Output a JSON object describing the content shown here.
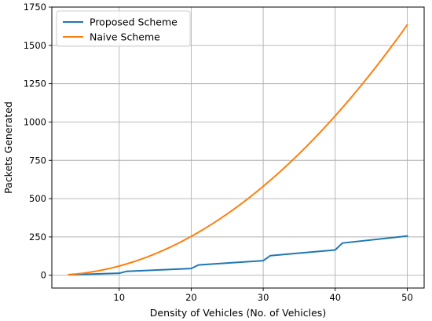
{
  "chart_data": {
    "type": "line",
    "title": "",
    "xlabel": "Density of Vehicles (No. of Vehicles)",
    "ylabel": "Packets Generated",
    "xlim": [
      0.65,
      52.35
    ],
    "ylim": [
      -83.5,
      1750
    ],
    "xticks": [
      10,
      20,
      30,
      40,
      50
    ],
    "yticks": [
      0,
      250,
      500,
      750,
      1000,
      1250,
      1500,
      1750
    ],
    "grid": true,
    "legend_position": "upper-left",
    "series": [
      {
        "name": "Proposed Scheme",
        "color": "#1f77b4",
        "points": [
          [
            3,
            3
          ],
          [
            10,
            13
          ],
          [
            11,
            25
          ],
          [
            20,
            44
          ],
          [
            21,
            67
          ],
          [
            30,
            95
          ],
          [
            31,
            128
          ],
          [
            40,
            165
          ],
          [
            41,
            210
          ],
          [
            50,
            256
          ]
        ]
      },
      {
        "name": "Naive Scheme",
        "color": "#ff7f0e",
        "function": "n*(n-1)*2/3",
        "x_range": [
          3,
          50
        ]
      }
    ]
  }
}
